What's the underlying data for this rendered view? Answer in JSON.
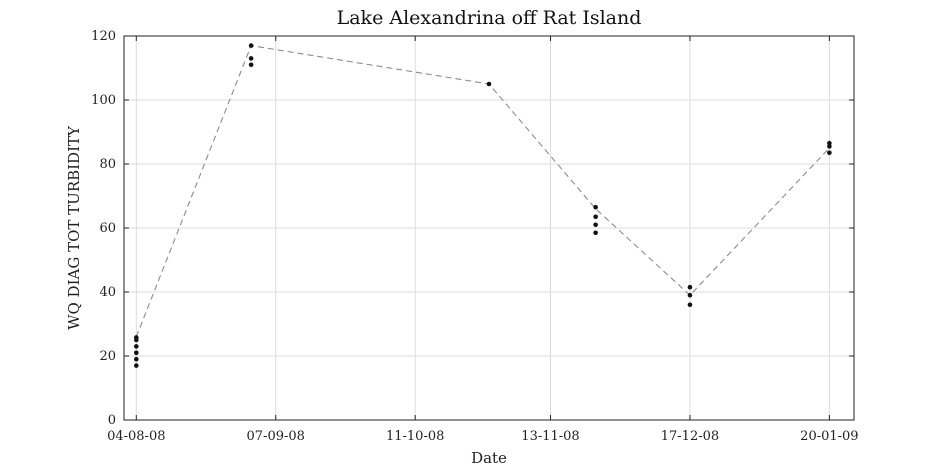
{
  "chart_data": {
    "type": "scatter",
    "title": "Lake Alexandrina off Rat Island",
    "xlabel": "Date",
    "ylabel": "WQ DIAG TOT TURBIDITY",
    "ylim": [
      0,
      120
    ],
    "xlim": [
      "2008-08-01",
      "2009-01-26"
    ],
    "yticks": [
      0,
      20,
      40,
      60,
      80,
      100,
      120
    ],
    "xticks": [
      {
        "date": "2008-08-04",
        "label": "04-08-08"
      },
      {
        "date": "2008-09-07",
        "label": "07-09-08"
      },
      {
        "date": "2008-10-11",
        "label": "11-10-08"
      },
      {
        "date": "2008-11-13",
        "label": "13-11-08"
      },
      {
        "date": "2008-12-17",
        "label": "17-12-08"
      },
      {
        "date": "2009-01-20",
        "label": "20-01-09"
      }
    ],
    "grid": true,
    "series": [
      {
        "style": "dashed-line",
        "color": "#8c8c8c",
        "points": [
          {
            "x": "2008-08-04",
            "y": 26
          },
          {
            "x": "2008-09-01",
            "y": 117
          },
          {
            "x": "2008-10-29",
            "y": 105
          },
          {
            "x": "2008-11-24",
            "y": 66
          },
          {
            "x": "2008-12-17",
            "y": 39
          },
          {
            "x": "2009-01-20",
            "y": 85
          }
        ]
      },
      {
        "style": "markers",
        "color": "#111111",
        "points": [
          {
            "x": "2008-08-04",
            "y": 25.8
          },
          {
            "x": "2008-08-04",
            "y": 25
          },
          {
            "x": "2008-08-04",
            "y": 23
          },
          {
            "x": "2008-08-04",
            "y": 21
          },
          {
            "x": "2008-08-04",
            "y": 19
          },
          {
            "x": "2008-08-04",
            "y": 17
          },
          {
            "x": "2008-09-01",
            "y": 117
          },
          {
            "x": "2008-09-01",
            "y": 113
          },
          {
            "x": "2008-09-01",
            "y": 111
          },
          {
            "x": "2008-10-29",
            "y": 105
          },
          {
            "x": "2008-11-24",
            "y": 66.5
          },
          {
            "x": "2008-11-24",
            "y": 63.5
          },
          {
            "x": "2008-11-24",
            "y": 61
          },
          {
            "x": "2008-11-24",
            "y": 58.5
          },
          {
            "x": "2008-12-17",
            "y": 41.5
          },
          {
            "x": "2008-12-17",
            "y": 39
          },
          {
            "x": "2008-12-17",
            "y": 36
          },
          {
            "x": "2009-01-20",
            "y": 86.5
          },
          {
            "x": "2009-01-20",
            "y": 85.5
          },
          {
            "x": "2009-01-20",
            "y": 83.5
          }
        ]
      }
    ]
  }
}
